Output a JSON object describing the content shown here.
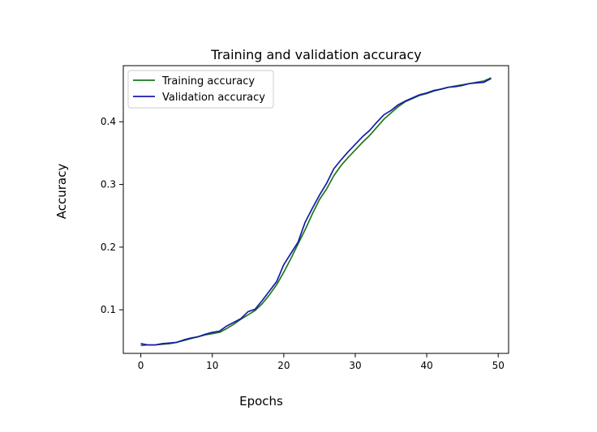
{
  "chart_data": {
    "type": "line",
    "title": "Training and validation accuracy",
    "xlabel": "Epochs",
    "ylabel": "Accuracy",
    "xlim": [
      -2.45,
      51.45
    ],
    "ylim": [
      0.0305,
      0.4895
    ],
    "xticks": [
      0,
      10,
      20,
      30,
      40,
      50
    ],
    "yticks": [
      0.1,
      0.2,
      0.3,
      0.4
    ],
    "xtick_labels": [
      "0",
      "10",
      "20",
      "30",
      "40",
      "50"
    ],
    "ytick_labels": [
      "0.1",
      "0.2",
      "0.3",
      "0.4"
    ],
    "legend_position": "top-left",
    "grid": false,
    "x": [
      0,
      1,
      2,
      3,
      4,
      5,
      6,
      7,
      8,
      9,
      10,
      11,
      12,
      13,
      14,
      15,
      16,
      17,
      18,
      19,
      20,
      21,
      22,
      23,
      24,
      25,
      26,
      27,
      28,
      29,
      30,
      31,
      32,
      33,
      34,
      35,
      36,
      37,
      38,
      39,
      40,
      41,
      42,
      43,
      44,
      45,
      46,
      47,
      48,
      49
    ],
    "series": [
      {
        "name": "Training accuracy",
        "color": "#1a7a1a",
        "values": [
          0.043,
          0.044,
          0.044,
          0.045,
          0.046,
          0.048,
          0.051,
          0.054,
          0.057,
          0.06,
          0.062,
          0.064,
          0.07,
          0.077,
          0.085,
          0.092,
          0.099,
          0.11,
          0.124,
          0.14,
          0.16,
          0.182,
          0.205,
          0.228,
          0.253,
          0.276,
          0.293,
          0.314,
          0.33,
          0.343,
          0.355,
          0.367,
          0.378,
          0.391,
          0.404,
          0.414,
          0.424,
          0.432,
          0.437,
          0.442,
          0.445,
          0.449,
          0.452,
          0.455,
          0.457,
          0.459,
          0.461,
          0.463,
          0.465,
          0.47
        ]
      },
      {
        "name": "Validation accuracy",
        "color": "#1a1aaa",
        "values": [
          0.046,
          0.044,
          0.044,
          0.046,
          0.047,
          0.048,
          0.052,
          0.055,
          0.057,
          0.061,
          0.064,
          0.066,
          0.074,
          0.08,
          0.086,
          0.097,
          0.101,
          0.115,
          0.13,
          0.145,
          0.172,
          0.19,
          0.208,
          0.24,
          0.262,
          0.283,
          0.302,
          0.325,
          0.339,
          0.352,
          0.364,
          0.376,
          0.386,
          0.399,
          0.411,
          0.418,
          0.427,
          0.433,
          0.438,
          0.443,
          0.446,
          0.45,
          0.452,
          0.455,
          0.456,
          0.458,
          0.461,
          0.462,
          0.463,
          0.469
        ]
      }
    ]
  }
}
